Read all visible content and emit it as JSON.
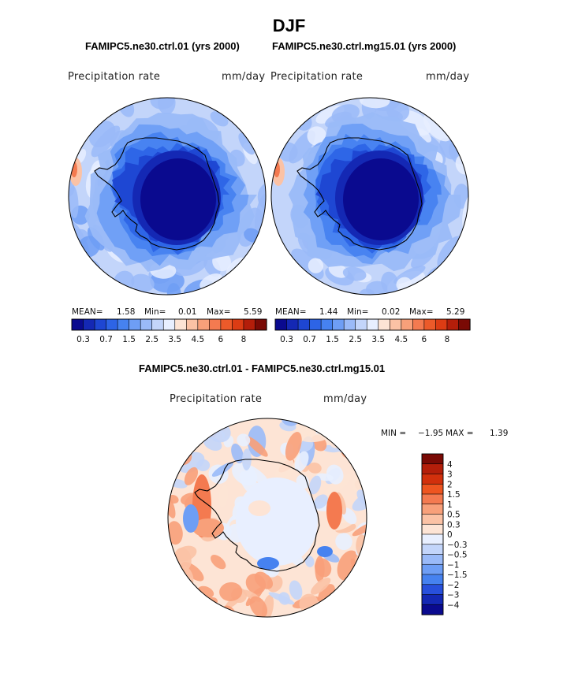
{
  "figure": {
    "title": "DJF"
  },
  "chart_data": [
    {
      "type": "heatmap",
      "projection": "south-polar-stereographic",
      "title": "FAMIPC5.ne30.ctrl.01 (yrs 2000)",
      "variable": "Precipitation rate",
      "units": "mm/day",
      "stats": {
        "mean_label": "MEAN=",
        "mean": "1.58",
        "min_label": "Min=",
        "min": "0.01",
        "max_label": "Max=",
        "max": "5.59"
      },
      "colorbar": {
        "levels": [
          "0.2",
          "0.3",
          "0.5",
          "0.7",
          "1",
          "1.5",
          "2",
          "2.5",
          "3",
          "3.5",
          "4",
          "4.5",
          "5",
          "6",
          "7",
          "8"
        ],
        "tick_labels": [
          "0.3",
          "0.7",
          "1.5",
          "2.5",
          "3.5",
          "4.5",
          "6",
          "8"
        ],
        "colors": [
          "#0a0a8f",
          "#1428b4",
          "#1e46d2",
          "#2d64e6",
          "#4682f0",
          "#6e9ef5",
          "#9abaf8",
          "#c3d5fa",
          "#e8efff",
          "#fde4d5",
          "#fbc2a5",
          "#f8a07a",
          "#f47a50",
          "#ec5a2a",
          "#dc3c14",
          "#b41e0a",
          "#7a0a05"
        ]
      }
    },
    {
      "type": "heatmap",
      "projection": "south-polar-stereographic",
      "title": "FAMIPC5.ne30.ctrl.mg15.01 (yrs 2000)",
      "variable": "Precipitation rate",
      "units": "mm/day",
      "stats": {
        "mean_label": "MEAN=",
        "mean": "1.44",
        "min_label": "Min=",
        "min": "0.02",
        "max_label": "Max=",
        "max": "5.29"
      },
      "colorbar": {
        "levels": [
          "0.2",
          "0.3",
          "0.5",
          "0.7",
          "1",
          "1.5",
          "2",
          "2.5",
          "3",
          "3.5",
          "4",
          "4.5",
          "5",
          "6",
          "7",
          "8"
        ],
        "tick_labels": [
          "0.3",
          "0.7",
          "1.5",
          "2.5",
          "3.5",
          "4.5",
          "6",
          "8"
        ],
        "colors": [
          "#0a0a8f",
          "#1428b4",
          "#1e46d2",
          "#2d64e6",
          "#4682f0",
          "#6e9ef5",
          "#9abaf8",
          "#c3d5fa",
          "#e8efff",
          "#fde4d5",
          "#fbc2a5",
          "#f8a07a",
          "#f47a50",
          "#ec5a2a",
          "#dc3c14",
          "#b41e0a",
          "#7a0a05"
        ]
      }
    },
    {
      "type": "heatmap",
      "projection": "south-polar-stereographic",
      "title": "FAMIPC5.ne30.ctrl.01 - FAMIPC5.ne30.ctrl.mg15.01",
      "variable": "Precipitation rate",
      "units": "mm/day",
      "stats": {
        "min_label": "MIN =",
        "min": "−1.95",
        "max_label": "MAX =",
        "max": "1.39"
      },
      "colorbar": {
        "orientation": "vertical",
        "tick_labels": [
          "4",
          "3",
          "2",
          "1.5",
          "1",
          "0.5",
          "0.3",
          "0",
          "−0.3",
          "−0.5",
          "−1",
          "−1.5",
          "−2",
          "−3",
          "−4"
        ],
        "colors": [
          "#7a0a05",
          "#b41e0a",
          "#d2300c",
          "#ee5520",
          "#f47a50",
          "#f8a07a",
          "#fbc2a5",
          "#fde4d5",
          "#e8efff",
          "#c3d5fa",
          "#9abaf8",
          "#6e9ef5",
          "#4682f0",
          "#2850dc",
          "#1428b4",
          "#0a0a8f"
        ]
      }
    }
  ]
}
